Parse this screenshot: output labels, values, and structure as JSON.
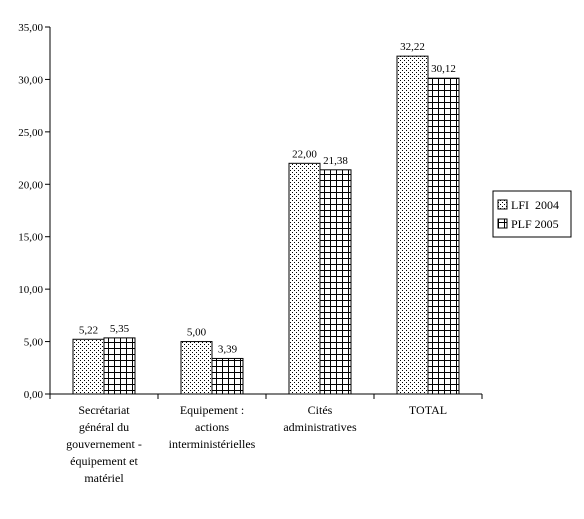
{
  "chart_data": {
    "type": "bar",
    "categories": [
      [
        "Secrétariat",
        "général du",
        "gouvernement -",
        "équipement et",
        "matériel"
      ],
      [
        "Equipement :",
        "actions",
        "interministérielles"
      ],
      [
        "Cités",
        "administratives"
      ],
      [
        "TOTAL"
      ]
    ],
    "series": [
      {
        "name": "LFI  2004",
        "values": [
          5.22,
          5.0,
          22.0,
          32.22
        ],
        "labels": [
          "5,22",
          "5,00",
          "22,00",
          "32,22"
        ],
        "pattern": "dots"
      },
      {
        "name": "PLF 2005",
        "values": [
          5.35,
          3.39,
          21.38,
          30.12
        ],
        "labels": [
          "5,35",
          "3,39",
          "21,38",
          "30,12"
        ],
        "pattern": "grid"
      }
    ],
    "ylim": [
      0,
      35
    ],
    "yticks": [
      "0,00",
      "5,00",
      "10,00",
      "15,00",
      "20,00",
      "25,00",
      "30,00",
      "35,00"
    ],
    "grid": false,
    "legend_position": "right",
    "title": "",
    "xlabel": "",
    "ylabel": ""
  }
}
